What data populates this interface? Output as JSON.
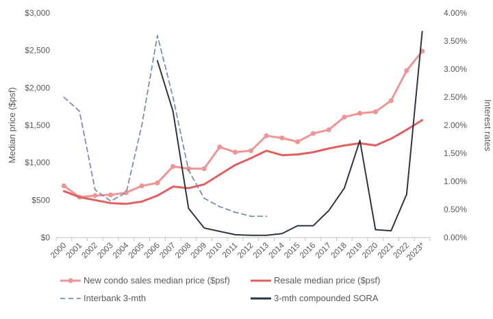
{
  "chart_data": {
    "type": "line",
    "categories": [
      "2000",
      "2001",
      "2002",
      "2003",
      "2004",
      "2005",
      "2006",
      "2007",
      "2008",
      "2009",
      "2010",
      "2011",
      "2012",
      "2013",
      "2014",
      "2015",
      "2016",
      "2017",
      "2018",
      "2019",
      "2020",
      "2021",
      "2022",
      "2023*"
    ],
    "left_axis": {
      "label": "Median price ($psf)",
      "range": [
        0,
        3000
      ],
      "ticks": [
        0,
        500,
        1000,
        1500,
        2000,
        2500,
        3000
      ],
      "tick_labels": [
        "$0",
        "$500",
        "$1,000",
        "$1,500",
        "$2,000",
        "$2,500",
        "$3,000"
      ]
    },
    "right_axis": {
      "label": "Interest rates",
      "range": [
        0,
        4
      ],
      "ticks": [
        0,
        0.5,
        1,
        1.5,
        2,
        2.5,
        3,
        3.5,
        4
      ],
      "tick_labels": [
        "0.00%",
        "0.50%",
        "1.00%",
        "1.50%",
        "2.00%",
        "2.50%",
        "3.00%",
        "3.50%",
        "4.00%"
      ]
    },
    "series": [
      {
        "name": "New condo sales median price ($psf)",
        "axis": "left",
        "color": "#f09494",
        "style": "solid-markers",
        "values": [
          690,
          540,
          560,
          570,
          600,
          690,
          730,
          950,
          920,
          920,
          1210,
          1140,
          1160,
          1360,
          1330,
          1280,
          1390,
          1440,
          1610,
          1660,
          1680,
          1830,
          2230,
          2490
        ]
      },
      {
        "name": "Resale median price ($psf)",
        "axis": "left",
        "color": "#e35f5f",
        "style": "solid",
        "values": [
          620,
          540,
          500,
          460,
          450,
          480,
          560,
          680,
          660,
          710,
          840,
          970,
          1060,
          1160,
          1100,
          1110,
          1140,
          1190,
          1230,
          1260,
          1230,
          1320,
          1440,
          1570
        ]
      },
      {
        "name": "Interbank 3-mth",
        "axis": "right",
        "color": "#7b8fad",
        "style": "dashed",
        "values": [
          2.5,
          2.25,
          0.85,
          0.65,
          0.8,
          2.0,
          3.6,
          2.5,
          1.2,
          0.7,
          0.55,
          0.45,
          0.38,
          0.38,
          null,
          null,
          null,
          null,
          null,
          null,
          null,
          null,
          null,
          null
        ]
      },
      {
        "name": "3-mth compounded SORA",
        "axis": "right",
        "color": "#2b3542",
        "style": "solid",
        "values": [
          null,
          null,
          null,
          null,
          null,
          null,
          3.15,
          2.25,
          0.52,
          0.17,
          0.11,
          0.05,
          0.04,
          0.04,
          0.07,
          0.21,
          0.21,
          0.48,
          0.88,
          1.73,
          0.14,
          0.12,
          0.77,
          3.67
        ]
      }
    ],
    "grid": false,
    "legend_position": "bottom"
  }
}
